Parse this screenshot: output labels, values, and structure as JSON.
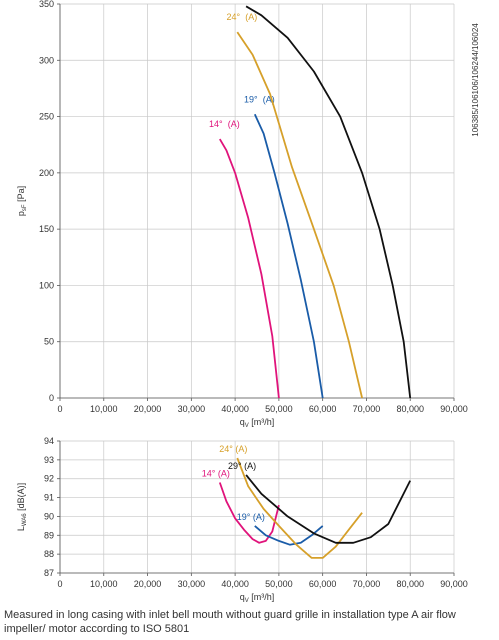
{
  "chart_data": [
    {
      "type": "line",
      "xlabel": "q_V [m³/h]",
      "ylabel": "p_sF [Pa]",
      "xlim": [
        0,
        90000
      ],
      "ylim": [
        0,
        350
      ],
      "x_ticks": [
        "0",
        "10,000",
        "20,000",
        "30,000",
        "40,000",
        "50,000",
        "60,000",
        "70,000",
        "80,000",
        "90,000"
      ],
      "y_ticks": [
        "0",
        "50",
        "100",
        "150",
        "200",
        "250",
        "300",
        "350"
      ],
      "grid": true,
      "side_label": "106385/106106/106244/106024",
      "series": [
        {
          "name": "14°",
          "color": "#e0137b",
          "labels": [
            "14°",
            "(A)"
          ],
          "points": [
            [
              36500,
              230
            ],
            [
              38000,
              220
            ],
            [
              40000,
              200
            ],
            [
              43000,
              160
            ],
            [
              46000,
              110
            ],
            [
              48500,
              55
            ],
            [
              50000,
              0
            ]
          ]
        },
        {
          "name": "19°",
          "color": "#1a5ca8",
          "labels": [
            "19°",
            "(A)"
          ],
          "points": [
            [
              44500,
              252
            ],
            [
              46500,
              235
            ],
            [
              49000,
              200
            ],
            [
              52000,
              155
            ],
            [
              55000,
              105
            ],
            [
              58000,
              50
            ],
            [
              60000,
              0
            ]
          ]
        },
        {
          "name": "24°",
          "color": "#d6a02a",
          "labels": [
            "24°",
            "(A)"
          ],
          "points": [
            [
              40500,
              325
            ],
            [
              44000,
              305
            ],
            [
              48000,
              270
            ],
            [
              53000,
              205
            ],
            [
              58000,
              150
            ],
            [
              62500,
              100
            ],
            [
              66000,
              50
            ],
            [
              69000,
              0
            ]
          ]
        },
        {
          "name": "29°",
          "color": "#111111",
          "labels": [
            "29°",
            "(A)"
          ],
          "points": [
            [
              42500,
              348
            ],
            [
              46000,
              340
            ],
            [
              52000,
              320
            ],
            [
              58000,
              290
            ],
            [
              64000,
              250
            ],
            [
              69000,
              200
            ],
            [
              73000,
              150
            ],
            [
              76000,
              100
            ],
            [
              78500,
              50
            ],
            [
              80000,
              0
            ]
          ]
        }
      ]
    },
    {
      "type": "line",
      "xlabel": "q_V [m³/h]",
      "ylabel": "L_WA6 [dB(A)]",
      "xlim": [
        0,
        90000
      ],
      "ylim": [
        87,
        94
      ],
      "x_ticks": [
        "0",
        "10,000",
        "20,000",
        "30,000",
        "40,000",
        "50,000",
        "60,000",
        "70,000",
        "80,000",
        "90,000"
      ],
      "y_ticks": [
        "87",
        "88",
        "89",
        "90",
        "91",
        "92",
        "93",
        "94"
      ],
      "grid": true,
      "series": [
        {
          "name": "14°",
          "color": "#e0137b",
          "label": "14° (A)",
          "points": [
            [
              36500,
              91.8
            ],
            [
              38000,
              90.8
            ],
            [
              40000,
              89.9
            ],
            [
              42000,
              89.3
            ],
            [
              44000,
              88.8
            ],
            [
              45500,
              88.6
            ],
            [
              47000,
              88.7
            ],
            [
              48500,
              89.2
            ],
            [
              50000,
              90.6
            ]
          ]
        },
        {
          "name": "19°",
          "color": "#1a5ca8",
          "label": "19° (A)",
          "points": [
            [
              44500,
              89.5
            ],
            [
              47000,
              89.0
            ],
            [
              50000,
              88.7
            ],
            [
              52500,
              88.5
            ],
            [
              55000,
              88.6
            ],
            [
              57500,
              89.0
            ],
            [
              60000,
              89.5
            ]
          ]
        },
        {
          "name": "24°",
          "color": "#d6a02a",
          "label": "24° (A)",
          "points": [
            [
              40500,
              93.1
            ],
            [
              43000,
              91.6
            ],
            [
              46500,
              90.4
            ],
            [
              50000,
              89.5
            ],
            [
              54000,
              88.5
            ],
            [
              57500,
              87.8
            ],
            [
              60000,
              87.8
            ],
            [
              63000,
              88.4
            ],
            [
              66000,
              89.3
            ],
            [
              69000,
              90.2
            ]
          ]
        },
        {
          "name": "29°",
          "color": "#111111",
          "label": "29° (A)",
          "points": [
            [
              42500,
              92.2
            ],
            [
              46000,
              91.2
            ],
            [
              52000,
              90.0
            ],
            [
              58000,
              89.1
            ],
            [
              63000,
              88.6
            ],
            [
              67000,
              88.6
            ],
            [
              71000,
              88.9
            ],
            [
              75000,
              89.6
            ],
            [
              80000,
              91.9
            ]
          ]
        }
      ]
    }
  ],
  "footnote": "Measured in long casing with inlet bell mouth without guard grille in installation type A air flow impeller/ motor according to ISO 5801"
}
